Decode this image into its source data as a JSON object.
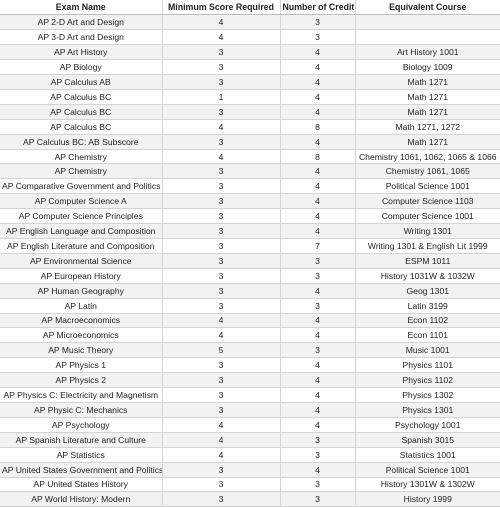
{
  "table": {
    "headers": [
      "Exam Name",
      "Minimum Score Required",
      "Number of Credit",
      "Equivalent Course"
    ],
    "rows": [
      [
        "AP 2-D Art and Design",
        "4",
        "3",
        ""
      ],
      [
        "AP 3-D Art and Design",
        "4",
        "3",
        ""
      ],
      [
        "AP Art History",
        "3",
        "4",
        "Art History 1001"
      ],
      [
        "AP Biology",
        "3",
        "4",
        "Biology 1009"
      ],
      [
        "AP Calculus AB",
        "3",
        "4",
        "Math 1271"
      ],
      [
        "AP Calculus BC",
        "1",
        "4",
        "Math 1271"
      ],
      [
        "AP Calculus BC",
        "3",
        "4",
        "Math 1271"
      ],
      [
        "AP Calculus BC",
        "4",
        "8",
        "Math 1271, 1272"
      ],
      [
        "AP Calculus BC: AB Subscore",
        "3",
        "4",
        "Math 1271"
      ],
      [
        "AP Chemistry",
        "4",
        "8",
        "Chemistry 1061, 1062, 1065 & 1066"
      ],
      [
        "AP Chemistry",
        "3",
        "4",
        "Chemistry 1061, 1065"
      ],
      [
        "AP Comparative Government and Politics",
        "3",
        "4",
        "Political Science 1001"
      ],
      [
        "AP Computer Science A",
        "3",
        "4",
        "Computer Science 1103"
      ],
      [
        "AP Computer Science Principles",
        "3",
        "4",
        "Computer Science 1001"
      ],
      [
        "AP English Language and Composition",
        "3",
        "4",
        "Writing 1301"
      ],
      [
        "AP English Literature and Composition",
        "3",
        "7",
        "Writing 1301 & English Lit 1999"
      ],
      [
        "AP Environmental Science",
        "3",
        "3",
        "ESPM 1011"
      ],
      [
        "AP European History",
        "3",
        "3",
        "History 1031W & 1032W"
      ],
      [
        "AP Human Geography",
        "3",
        "4",
        "Geog 1301"
      ],
      [
        "AP Latin",
        "3",
        "3",
        "Latin 3199"
      ],
      [
        "AP Macroeconomics",
        "4",
        "4",
        "Econ 1102"
      ],
      [
        "AP Microeconomics",
        "4",
        "4",
        "Econ 1101"
      ],
      [
        "AP Music Theory",
        "5",
        "3",
        "Music 1001"
      ],
      [
        "AP Physics 1",
        "3",
        "4",
        "Physics 1101"
      ],
      [
        "AP Physics 2",
        "3",
        "4",
        "Physics 1102"
      ],
      [
        "AP Physics C: Electricity and Magnetism",
        "3",
        "4",
        "Physics 1302"
      ],
      [
        "AP Physic C: Mechanics",
        "3",
        "4",
        "Physics 1301"
      ],
      [
        "AP Psychology",
        "4",
        "4",
        "Psychology 1001"
      ],
      [
        "AP Spanish Literature and Culture",
        "4",
        "3",
        "Spanish 3015"
      ],
      [
        "AP Statistics",
        "4",
        "3",
        "Statistics 1001"
      ],
      [
        "AP United States Government and Politics",
        "3",
        "4",
        "Political Science 1001"
      ],
      [
        "AP United States History",
        "3",
        "3",
        "History 1301W & 1302W"
      ],
      [
        "AP World History: Modern",
        "3",
        "3",
        "History 1999"
      ]
    ]
  }
}
